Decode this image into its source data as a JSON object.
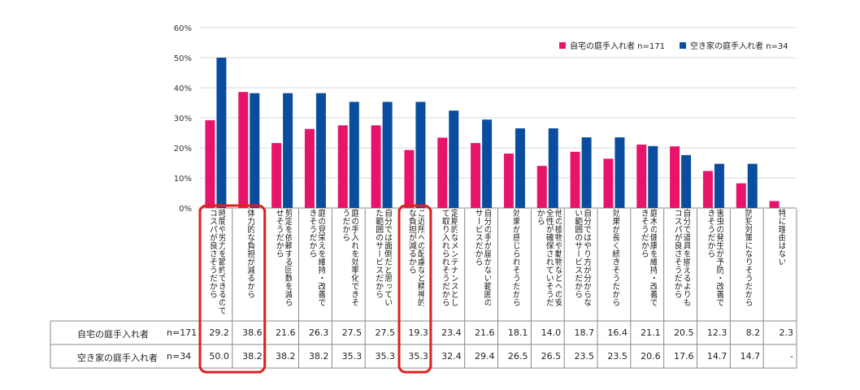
{
  "colors": {
    "series1": "#e8146b",
    "series2": "#0a4d9e",
    "highlight": "#e02020",
    "grid": "#d9d9d9",
    "axis": "#888888"
  },
  "chart_data": {
    "type": "bar",
    "ylim": [
      0,
      60
    ],
    "yticks": [
      "0%",
      "10%",
      "20%",
      "30%",
      "40%",
      "50%",
      "60%"
    ],
    "categories": [
      "時間や労力を節約できるので\nコスパが良さそうだから",
      "体力的な負担が減るから",
      "剪定を依頼する回数を減ら\nせそうだから",
      "庭の見栄えを維持・改善で\nきそうだから",
      "庭の手入れを効率化できそ\nうだから",
      "自分では面倒だと思ってい\nた範囲のサービスだから",
      "ご近所への配慮など精神的\nな負担が減るから",
      "定期的なメンテナンスとし\nて取り入れられそうだから",
      "自分の手が届かない範囲の\nサービスだから",
      "効果が感じられそうだから",
      "他の植物や動物などへの安\n全性が確保されていそうだ\nから",
      "自分ではやり方が分からな\nい範囲のサービスだから",
      "効果が長く続きそうだから",
      "庭木の健康を維持・改善で\nきそうだから",
      "自分で道具を揃えるよりも\nコスパが良さそうだから",
      "害虫の発生が予防・改善で\nきそうだから",
      "防犯対策になりそうだから",
      "特に理由はない"
    ],
    "series": [
      {
        "name": "自宅の庭手入れ者",
        "n": "n=171",
        "legend": "自宅の庭手入れ者 n=171",
        "values": [
          29.2,
          38.6,
          21.6,
          26.3,
          27.5,
          27.5,
          19.3,
          23.4,
          21.6,
          18.1,
          14.0,
          18.7,
          16.4,
          21.1,
          20.5,
          12.3,
          8.2,
          2.3
        ],
        "labels": [
          "29.2",
          "38.6",
          "21.6",
          "26.3",
          "27.5",
          "27.5",
          "19.3",
          "23.4",
          "21.6",
          "18.1",
          "14.0",
          "18.7",
          "16.4",
          "21.1",
          "20.5",
          "12.3",
          "8.2",
          "2.3"
        ]
      },
      {
        "name": "空き家の庭手入れ者",
        "n": "n=34",
        "legend": "空き家の庭手入れ者 n=34",
        "values": [
          50.0,
          38.2,
          38.2,
          38.2,
          35.3,
          35.3,
          35.3,
          32.4,
          29.4,
          26.5,
          26.5,
          23.5,
          23.5,
          20.6,
          17.6,
          14.7,
          14.7,
          0
        ],
        "labels": [
          "50.0",
          "38.2",
          "38.2",
          "38.2",
          "35.3",
          "35.3",
          "35.3",
          "32.4",
          "29.4",
          "26.5",
          "26.5",
          "23.5",
          "23.5",
          "20.6",
          "17.6",
          "14.7",
          "14.7",
          "-"
        ]
      }
    ],
    "highlighted_categories": [
      [
        0,
        1
      ],
      [
        6
      ]
    ]
  }
}
